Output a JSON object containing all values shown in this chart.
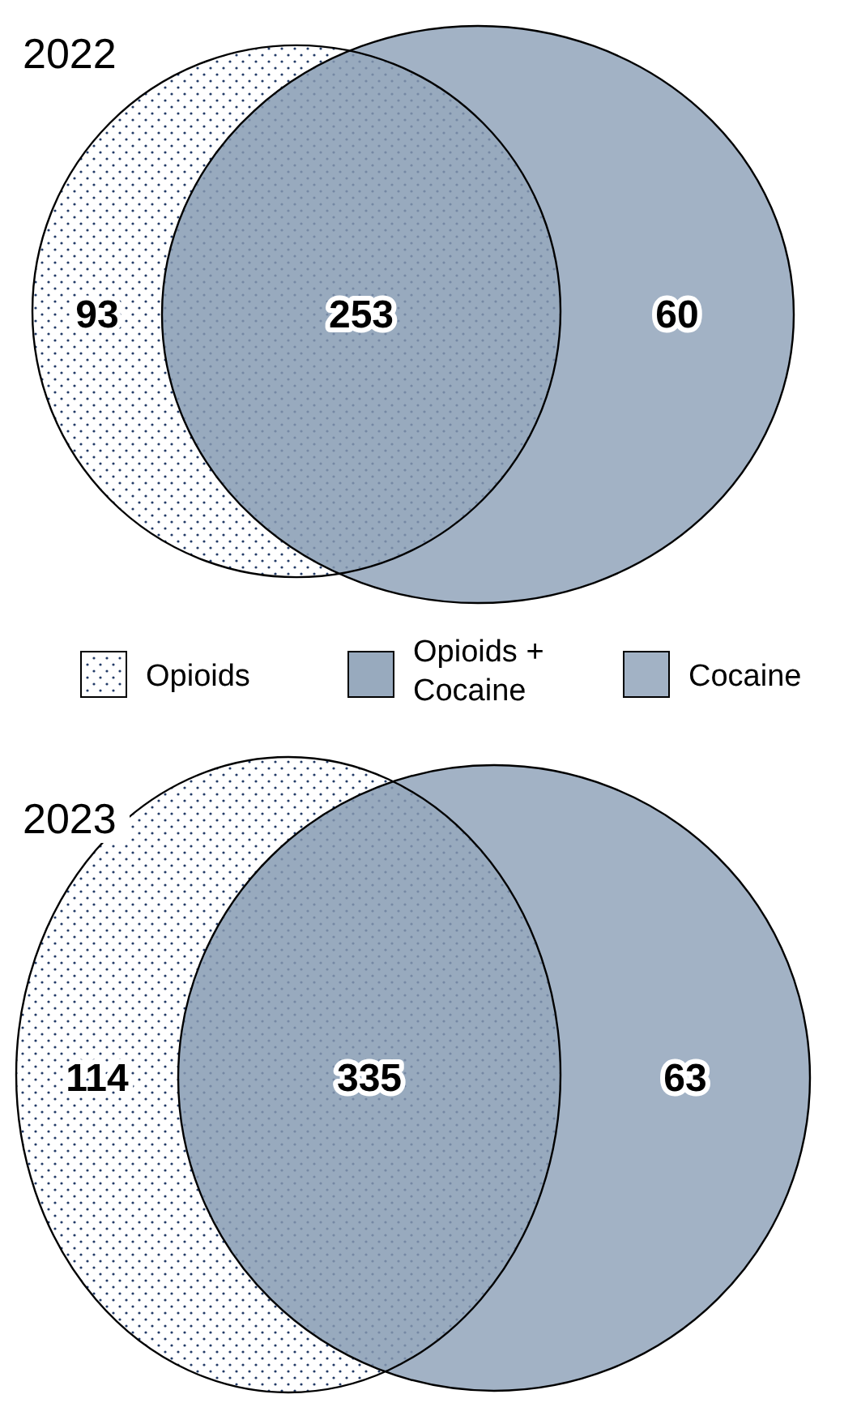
{
  "chart_data": [
    {
      "type": "other",
      "title": "2022",
      "categories": [
        "Opioids",
        "Opioids + Cocaine",
        "Cocaine"
      ],
      "values": [
        93,
        253,
        60
      ],
      "colors": [
        "#ffffff",
        "#98aabe",
        "#a2b2c5"
      ],
      "data_labels": true
    },
    {
      "type": "other",
      "title": "2023",
      "categories": [
        null,
        null,
        null
      ],
      "values": [
        114,
        335,
        63
      ],
      "colors": [
        "#ffffff",
        "#98aabe",
        "#a2b2c5"
      ],
      "data_labels": true
    }
  ]
}
